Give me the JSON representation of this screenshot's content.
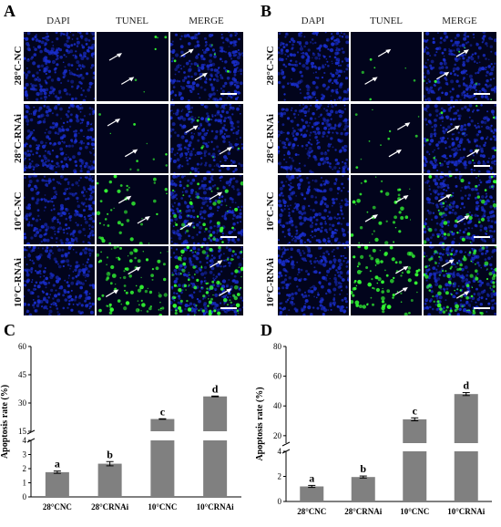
{
  "figure": {
    "panel_letters": [
      "A",
      "B",
      "C",
      "D"
    ],
    "micrograph_columns": [
      "DAPI",
      "TUNEL",
      "MERGE"
    ],
    "micrograph_rows": [
      {
        "label": "28°C-NC",
        "sup": "o"
      },
      {
        "label": "28°C-RNAi",
        "sup": "o"
      },
      {
        "label": "10°C-NC",
        "sup": "o"
      },
      {
        "label": "10°C-RNAi",
        "sup": "o"
      }
    ],
    "colors": {
      "dapi": "#1a2fd0",
      "tunel": "#33ff33",
      "background": "#02041c",
      "bar": "#808080",
      "arrow": "#ffffff"
    }
  },
  "chart_data": [
    {
      "type": "bar",
      "panel": "C",
      "ylabel": "Apoptosis rate (%)",
      "categories": [
        "28°CNC",
        "28°CRNAi",
        "10°CNC",
        "10°CRNAi"
      ],
      "values": [
        1.75,
        2.35,
        21.5,
        33.5
      ],
      "errors": [
        0.08,
        0.15,
        0.15,
        0.2
      ],
      "significance_letters": [
        "a",
        "b",
        "c",
        "d"
      ],
      "broken_axis": {
        "lower_range": [
          0,
          4
        ],
        "upper_range": [
          15,
          60
        ]
      },
      "yticks_lower": [
        0,
        1,
        2,
        3,
        4
      ],
      "yticks_upper": [
        15,
        30,
        45,
        60
      ]
    },
    {
      "type": "bar",
      "panel": "D",
      "ylabel": "Apoptosis rate (%)",
      "categories": [
        "28°CNC",
        "28°CRNAi",
        "10°CNC",
        "10°CRNAi"
      ],
      "values": [
        1.2,
        1.95,
        31,
        48
      ],
      "errors": [
        0.08,
        0.08,
        1.0,
        1.0
      ],
      "significance_letters": [
        "a",
        "b",
        "c",
        "d"
      ],
      "broken_axis": {
        "lower_range": [
          0,
          4
        ],
        "upper_range": [
          15,
          80
        ]
      },
      "yticks_lower": [
        0,
        2,
        4
      ],
      "yticks_upper": [
        20,
        40,
        60,
        80
      ]
    }
  ]
}
